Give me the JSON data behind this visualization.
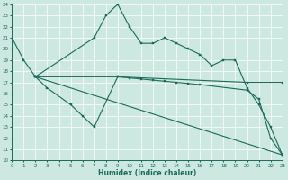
{
  "xlabel": "Humidex (Indice chaleur)",
  "xlim": [
    0,
    23
  ],
  "ylim": [
    10,
    24
  ],
  "xticks": [
    0,
    1,
    2,
    3,
    4,
    5,
    6,
    7,
    8,
    9,
    10,
    11,
    12,
    13,
    14,
    15,
    16,
    17,
    18,
    19,
    20,
    21,
    22,
    23
  ],
  "yticks": [
    10,
    11,
    12,
    13,
    14,
    15,
    16,
    17,
    18,
    19,
    20,
    21,
    22,
    23,
    24
  ],
  "bg_color": "#cce8e0",
  "grid_color": "#b0d8d0",
  "line_color": "#1a6b5a",
  "line1_x": [
    0,
    1,
    2,
    7,
    8,
    9,
    10,
    11,
    12,
    13,
    14,
    15,
    16,
    17,
    18,
    19,
    20,
    21,
    22,
    23
  ],
  "line1_y": [
    21,
    19,
    17.5,
    21,
    23,
    24,
    22,
    20.5,
    20.5,
    21,
    20.5,
    20,
    19.5,
    18.5,
    19,
    19,
    16.5,
    15,
    13,
    10.5
  ],
  "line2_x": [
    2,
    3,
    5,
    6,
    7,
    9,
    10,
    11,
    12,
    13,
    14,
    15,
    16,
    20,
    21,
    22,
    23
  ],
  "line2_y": [
    17.5,
    16.5,
    15,
    14,
    13,
    17.5,
    17.4,
    17.3,
    17.2,
    17.1,
    17.0,
    16.9,
    16.8,
    16.3,
    15.5,
    12,
    10.5
  ],
  "line3_x": [
    2,
    9,
    20,
    23
  ],
  "line3_y": [
    17.5,
    17.5,
    17.0,
    17.0
  ],
  "line4_x": [
    2,
    23
  ],
  "line4_y": [
    17.5,
    10.5
  ]
}
